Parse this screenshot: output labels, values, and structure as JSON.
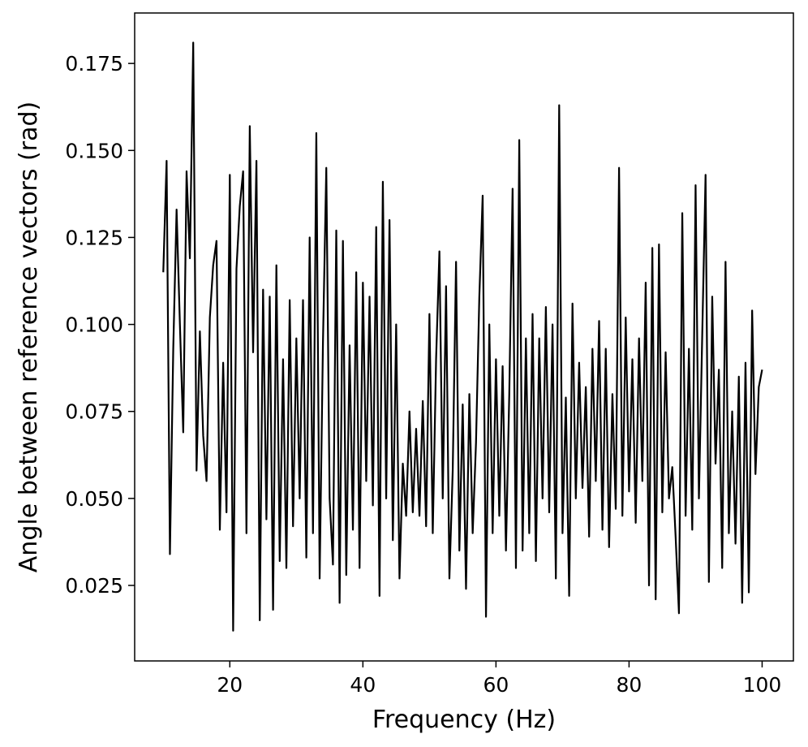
{
  "chart_data": {
    "type": "line",
    "x_label": "Frequency (Hz)",
    "y_label": "Angle between reference vectors (rad)",
    "xlim": [
      5.7,
      104.7
    ],
    "ylim": [
      0.0033,
      0.1895
    ],
    "xticks": [
      20,
      40,
      60,
      80,
      100
    ],
    "yticks": [
      {
        "value": 0.025,
        "label": "0.025"
      },
      {
        "value": 0.05,
        "label": "0.050"
      },
      {
        "value": 0.075,
        "label": "0.075"
      },
      {
        "value": 0.1,
        "label": "0.100"
      },
      {
        "value": 0.125,
        "label": "0.125"
      },
      {
        "value": 0.15,
        "label": "0.150"
      },
      {
        "value": 0.175,
        "label": "0.175"
      }
    ],
    "grid": false,
    "x": [
      10.0,
      10.5,
      11.0,
      11.5,
      12.0,
      12.5,
      13.0,
      13.5,
      14.0,
      14.5,
      15.0,
      15.5,
      16.0,
      16.5,
      17.0,
      17.5,
      18.0,
      18.5,
      19.0,
      19.5,
      20.0,
      20.5,
      21.0,
      21.5,
      22.0,
      22.5,
      23.0,
      23.5,
      24.0,
      24.5,
      25.0,
      25.5,
      26.0,
      26.5,
      27.0,
      27.5,
      28.0,
      28.5,
      29.0,
      29.5,
      30.0,
      30.5,
      31.0,
      31.5,
      32.0,
      32.5,
      33.0,
      33.5,
      34.0,
      34.5,
      35.0,
      35.5,
      36.0,
      36.5,
      37.0,
      37.5,
      38.0,
      38.5,
      39.0,
      39.5,
      40.0,
      40.5,
      41.0,
      41.5,
      42.0,
      42.5,
      43.0,
      43.5,
      44.0,
      44.5,
      45.0,
      45.5,
      46.0,
      46.5,
      47.0,
      47.5,
      48.0,
      48.5,
      49.0,
      49.5,
      50.0,
      50.5,
      51.0,
      51.5,
      52.0,
      52.5,
      53.0,
      53.5,
      54.0,
      54.5,
      55.0,
      55.5,
      56.0,
      56.5,
      57.0,
      57.5,
      58.0,
      58.5,
      59.0,
      59.5,
      60.0,
      60.5,
      61.0,
      61.5,
      62.0,
      62.5,
      63.0,
      63.5,
      64.0,
      64.5,
      65.0,
      65.5,
      66.0,
      66.5,
      67.0,
      67.5,
      68.0,
      68.5,
      69.0,
      69.5,
      70.0,
      70.5,
      71.0,
      71.5,
      72.0,
      72.5,
      73.0,
      73.5,
      74.0,
      74.5,
      75.0,
      75.5,
      76.0,
      76.5,
      77.0,
      77.5,
      78.0,
      78.5,
      79.0,
      79.5,
      80.0,
      80.5,
      81.0,
      81.5,
      82.0,
      82.5,
      83.0,
      83.5,
      84.0,
      84.5,
      85.0,
      85.5,
      86.0,
      86.5,
      87.0,
      87.5,
      88.0,
      88.5,
      89.0,
      89.5,
      90.0,
      90.5,
      91.0,
      91.5,
      92.0,
      92.5,
      93.0,
      93.5,
      94.0,
      94.5,
      95.0,
      95.5,
      96.0,
      96.5,
      97.0,
      97.5,
      98.0,
      98.5,
      99.0,
      99.5,
      100.0
    ],
    "series": [
      {
        "color": "#000000",
        "values": [
          0.115,
          0.147,
          0.034,
          0.093,
          0.133,
          0.1,
          0.069,
          0.144,
          0.119,
          0.181,
          0.058,
          0.098,
          0.068,
          0.055,
          0.102,
          0.117,
          0.124,
          0.041,
          0.089,
          0.046,
          0.143,
          0.012,
          0.116,
          0.134,
          0.144,
          0.04,
          0.157,
          0.092,
          0.147,
          0.015,
          0.11,
          0.044,
          0.108,
          0.018,
          0.117,
          0.032,
          0.09,
          0.03,
          0.107,
          0.042,
          0.096,
          0.05,
          0.107,
          0.033,
          0.125,
          0.04,
          0.155,
          0.027,
          0.095,
          0.145,
          0.05,
          0.031,
          0.127,
          0.02,
          0.124,
          0.028,
          0.094,
          0.041,
          0.115,
          0.03,
          0.112,
          0.055,
          0.108,
          0.048,
          0.128,
          0.022,
          0.141,
          0.05,
          0.13,
          0.038,
          0.1,
          0.027,
          0.06,
          0.045,
          0.075,
          0.046,
          0.07,
          0.045,
          0.078,
          0.042,
          0.103,
          0.04,
          0.09,
          0.121,
          0.05,
          0.111,
          0.027,
          0.058,
          0.118,
          0.035,
          0.077,
          0.024,
          0.08,
          0.04,
          0.066,
          0.108,
          0.137,
          0.016,
          0.1,
          0.04,
          0.09,
          0.045,
          0.088,
          0.035,
          0.08,
          0.139,
          0.03,
          0.153,
          0.035,
          0.096,
          0.04,
          0.103,
          0.032,
          0.096,
          0.05,
          0.105,
          0.046,
          0.1,
          0.027,
          0.163,
          0.04,
          0.079,
          0.022,
          0.106,
          0.05,
          0.089,
          0.053,
          0.082,
          0.039,
          0.093,
          0.055,
          0.101,
          0.041,
          0.093,
          0.036,
          0.08,
          0.047,
          0.145,
          0.045,
          0.102,
          0.052,
          0.09,
          0.043,
          0.096,
          0.055,
          0.112,
          0.025,
          0.122,
          0.021,
          0.123,
          0.046,
          0.092,
          0.05,
          0.059,
          0.039,
          0.017,
          0.132,
          0.045,
          0.093,
          0.041,
          0.14,
          0.05,
          0.097,
          0.143,
          0.026,
          0.108,
          0.06,
          0.087,
          0.03,
          0.118,
          0.04,
          0.075,
          0.037,
          0.085,
          0.02,
          0.089,
          0.023,
          0.104,
          0.057,
          0.082,
          0.087
        ]
      }
    ]
  }
}
